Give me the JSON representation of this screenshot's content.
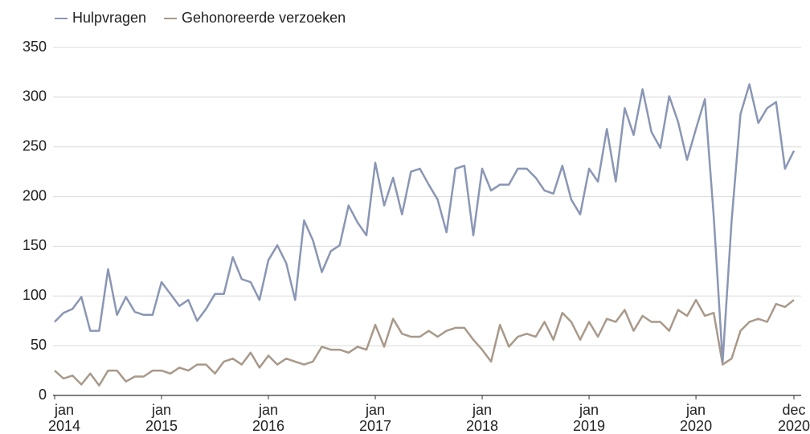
{
  "chart_data": {
    "type": "line",
    "x": [
      "2014-01",
      "2014-02",
      "2014-03",
      "2014-04",
      "2014-05",
      "2014-06",
      "2014-07",
      "2014-08",
      "2014-09",
      "2014-10",
      "2014-11",
      "2014-12",
      "2015-01",
      "2015-02",
      "2015-03",
      "2015-04",
      "2015-05",
      "2015-06",
      "2015-07",
      "2015-08",
      "2015-09",
      "2015-10",
      "2015-11",
      "2015-12",
      "2016-01",
      "2016-02",
      "2016-03",
      "2016-04",
      "2016-05",
      "2016-06",
      "2016-07",
      "2016-08",
      "2016-09",
      "2016-10",
      "2016-11",
      "2016-12",
      "2017-01",
      "2017-02",
      "2017-03",
      "2017-04",
      "2017-05",
      "2017-06",
      "2017-07",
      "2017-08",
      "2017-09",
      "2017-10",
      "2017-11",
      "2017-12",
      "2018-01",
      "2018-02",
      "2018-03",
      "2018-04",
      "2018-05",
      "2018-06",
      "2018-07",
      "2018-08",
      "2018-09",
      "2018-10",
      "2018-11",
      "2018-12",
      "2019-01",
      "2019-02",
      "2019-03",
      "2019-04",
      "2019-05",
      "2019-06",
      "2019-07",
      "2019-08",
      "2019-09",
      "2019-10",
      "2019-11",
      "2019-12",
      "2020-01",
      "2020-02",
      "2020-03",
      "2020-04",
      "2020-05",
      "2020-06",
      "2020-07",
      "2020-08",
      "2020-09",
      "2020-10",
      "2020-11",
      "2020-12"
    ],
    "series": [
      {
        "name": "Hulpvragen",
        "color": "#8a96b4",
        "values": [
          74,
          83,
          87,
          99,
          65,
          65,
          127,
          81,
          99,
          84,
          81,
          81,
          114,
          102,
          90,
          96,
          75,
          87,
          102,
          102,
          139,
          117,
          114,
          96,
          136,
          151,
          133,
          96,
          176,
          156,
          124,
          145,
          151,
          191,
          174,
          161,
          234,
          191,
          219,
          182,
          225,
          228,
          212,
          197,
          164,
          228,
          231,
          161,
          228,
          206,
          212,
          212,
          228,
          228,
          219,
          206,
          203,
          231,
          197,
          182,
          228,
          215,
          268,
          215,
          289,
          262,
          308,
          265,
          249,
          301,
          275,
          237,
          268,
          298,
          180,
          34,
          175,
          283,
          313,
          274,
          289,
          295,
          228,
          246
        ]
      },
      {
        "name": "Gehonoreerde verzoeken",
        "color": "#a8998a",
        "values": [
          25,
          17,
          20,
          11,
          22,
          10,
          25,
          25,
          14,
          19,
          19,
          25,
          25,
          22,
          28,
          25,
          31,
          31,
          22,
          34,
          37,
          31,
          43,
          28,
          40,
          31,
          37,
          34,
          31,
          34,
          49,
          46,
          46,
          43,
          49,
          46,
          71,
          49,
          77,
          62,
          59,
          59,
          65,
          59,
          65,
          68,
          68,
          56,
          46,
          34,
          71,
          49,
          59,
          62,
          59,
          74,
          56,
          83,
          74,
          56,
          74,
          59,
          77,
          74,
          86,
          65,
          80,
          74,
          74,
          65,
          86,
          80,
          96,
          80,
          83,
          31,
          37,
          65,
          74,
          77,
          74,
          92,
          89,
          96
        ]
      }
    ],
    "ylim": [
      0,
      350
    ],
    "yticks": [
      0,
      50,
      100,
      150,
      200,
      250,
      300,
      350
    ],
    "xticks": [
      {
        "value": "2014-01",
        "label": "jan 2014"
      },
      {
        "value": "2015-01",
        "label": "jan 2015"
      },
      {
        "value": "2016-01",
        "label": "jan 2016"
      },
      {
        "value": "2017-01",
        "label": "jan 2017"
      },
      {
        "value": "2018-01",
        "label": "jan 2018"
      },
      {
        "value": "2019-01",
        "label": "jan 2019"
      },
      {
        "value": "2020-01",
        "label": "jan 2020"
      },
      {
        "value": "2020-12",
        "label": "dec 2020"
      }
    ],
    "grid": true,
    "legend": "top-left"
  }
}
